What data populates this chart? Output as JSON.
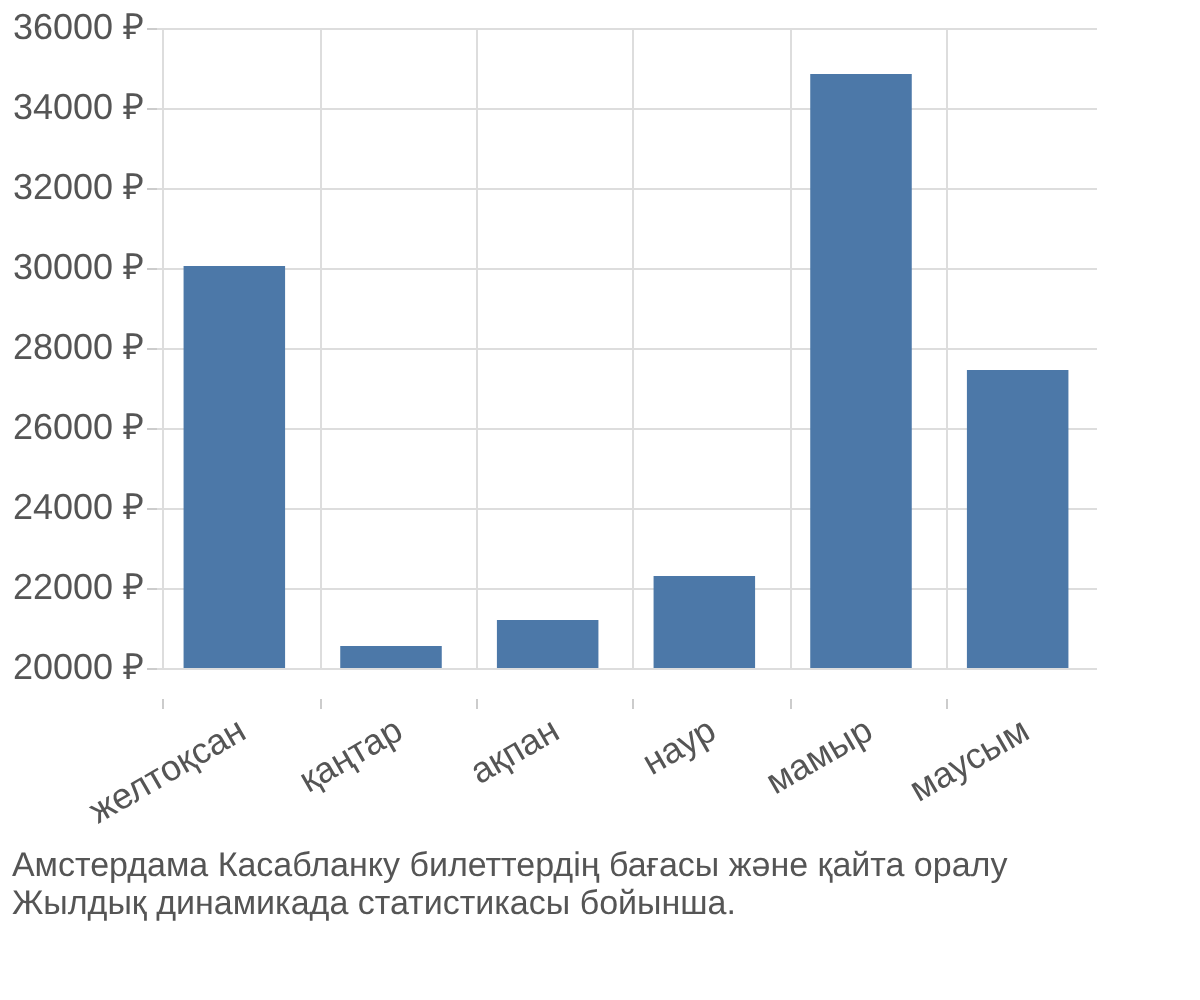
{
  "chart_data": {
    "type": "bar",
    "categories": [
      "желтоқсан",
      "қаңтар",
      "ақпан",
      "наур",
      "мамыр",
      "маусым"
    ],
    "values": [
      30050,
      20550,
      21200,
      22300,
      34850,
      27450
    ],
    "color": "#4c78a8",
    "ylim": [
      20000,
      36000
    ],
    "yticks": [
      {
        "value": 20000,
        "label": "20000 ₽"
      },
      {
        "value": 22000,
        "label": "22000 ₽"
      },
      {
        "value": 24000,
        "label": "24000 ₽"
      },
      {
        "value": 26000,
        "label": "26000 ₽"
      },
      {
        "value": 28000,
        "label": "28000 ₽"
      },
      {
        "value": 30000,
        "label": "30000 ₽"
      },
      {
        "value": 32000,
        "label": "32000 ₽"
      },
      {
        "value": 34000,
        "label": "34000 ₽"
      },
      {
        "value": 36000,
        "label": "36000 ₽"
      }
    ],
    "grid": true,
    "annotations": [
      "Амстердама Касабланку билеттердің бағасы және қайта оралу",
      "Жылдық динамикада статистикасы бойынша."
    ]
  }
}
